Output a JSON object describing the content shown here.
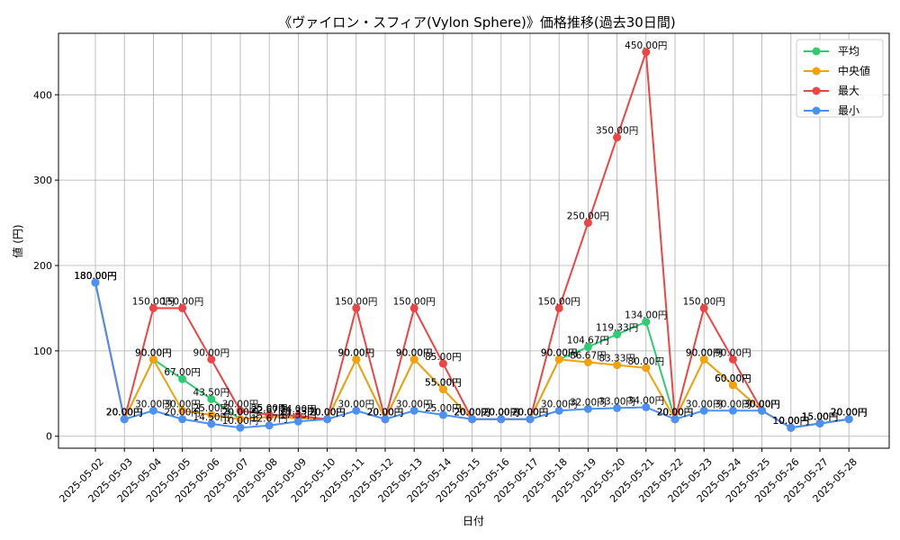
{
  "chart_data": {
    "type": "line",
    "title": "《ヴァイロン・スフィア(Vylon Sphere)》価格推移(過去30日間)",
    "xlabel": "日付",
    "ylabel": "値 (円)",
    "ylim": [
      -14,
      472
    ],
    "yticks": [
      0,
      100,
      200,
      300,
      400
    ],
    "grid": true,
    "legend_position": "top-right",
    "label_suffix": "円",
    "x": [
      "2025-05-02",
      "2025-05-03",
      "2025-05-04",
      "2025-05-05",
      "2025-05-06",
      "2025-05-07",
      "2025-05-08",
      "2025-05-09",
      "2025-05-10",
      "2025-05-11",
      "2025-05-12",
      "2025-05-13",
      "2025-05-14",
      "2025-05-15",
      "2025-05-16",
      "2025-05-17",
      "2025-05-18",
      "2025-05-19",
      "2025-05-20",
      "2025-05-21",
      "2025-05-22",
      "2025-05-23",
      "2025-05-24",
      "2025-05-25",
      "2025-05-26",
      "2025-05-27",
      "2025-05-28"
    ],
    "series": [
      {
        "name": "平均",
        "color": "#2ecc71",
        "values": [
          180,
          20,
          90,
          67,
          43.5,
          20,
          22.67,
          21.33,
          20,
          90,
          20,
          90,
          55,
          20,
          20,
          20,
          90,
          104.67,
          119.33,
          134,
          20,
          90,
          60,
          30,
          10,
          15,
          20
        ]
      },
      {
        "name": "中央値",
        "color": "#f5a10b",
        "values": [
          180,
          20,
          90,
          30,
          25,
          20,
          22.67,
          21.33,
          20,
          90,
          20,
          90,
          55,
          20,
          20,
          20,
          90,
          86.67,
          83.33,
          80,
          20,
          90,
          60,
          30,
          10,
          15,
          20
        ]
      },
      {
        "name": "最大",
        "color": "#ef4444",
        "values": [
          180,
          20,
          150,
          150,
          90,
          30,
          25,
          24,
          20,
          150,
          20,
          150,
          85,
          20,
          20,
          20,
          150,
          250,
          350,
          450,
          20,
          150,
          90,
          30,
          10,
          15,
          20
        ]
      },
      {
        "name": "最小",
        "color": "#4a90f5",
        "values": [
          180,
          20,
          30,
          20,
          14.5,
          10,
          12.67,
          17.33,
          20,
          30,
          20,
          30,
          25,
          20,
          20,
          20,
          30,
          32,
          33,
          34,
          20,
          30,
          30,
          30,
          10,
          15,
          20
        ]
      }
    ]
  }
}
